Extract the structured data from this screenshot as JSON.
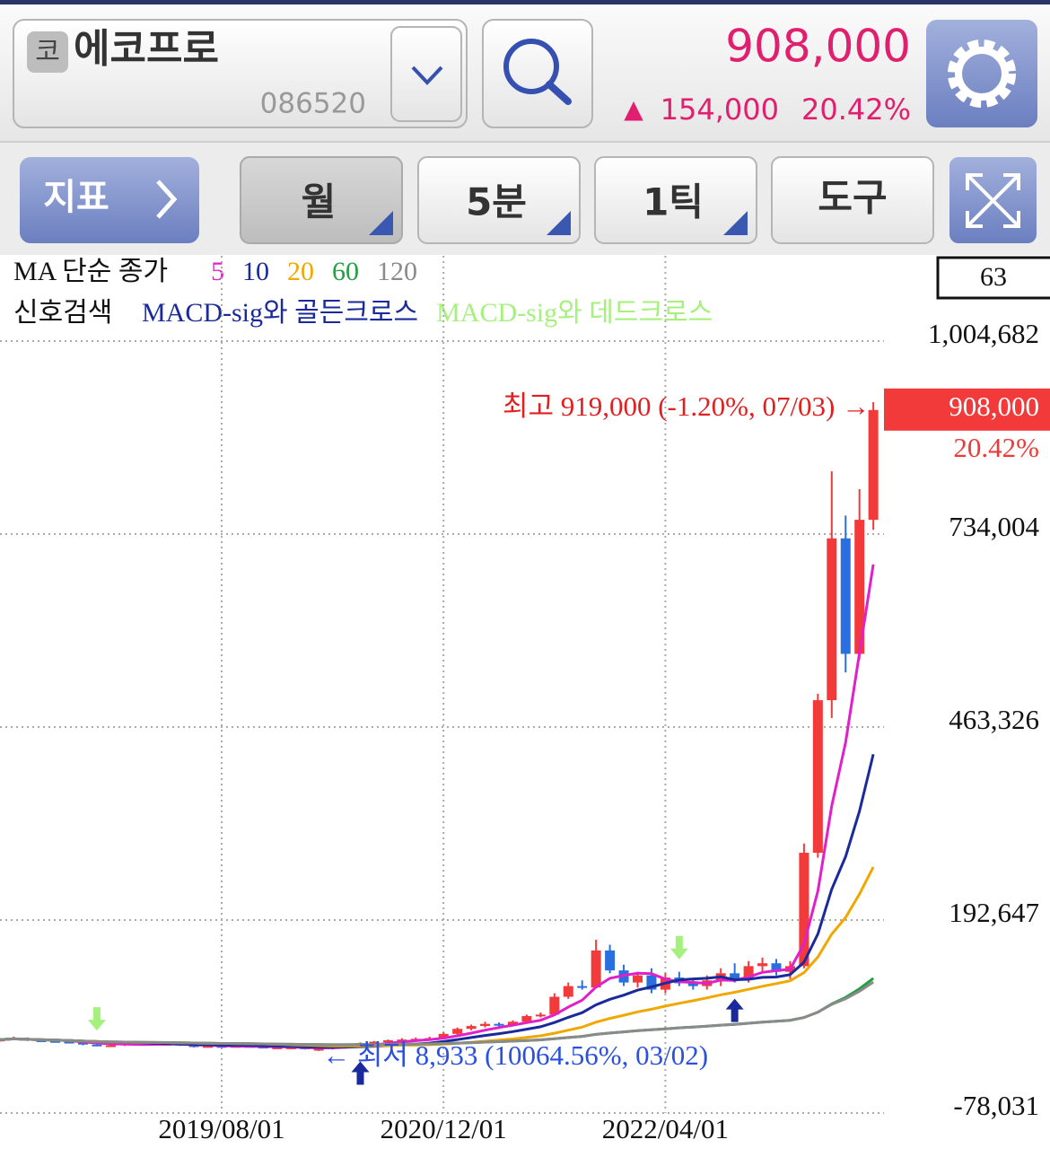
{
  "header": {
    "badge": "코",
    "name": "에코프로",
    "code": "086520",
    "price": "908,000",
    "change_arrow": "▲",
    "change": "154,000",
    "change_pct": "20.42%"
  },
  "toolbar": {
    "indicator": "지표",
    "periods": [
      "월",
      "5분",
      "1틱"
    ],
    "tools": "도구"
  },
  "chart_data": {
    "type": "candlestick",
    "ma_label": "MA 단순 종가",
    "ma": [
      {
        "period": 5,
        "color": "#e020c8"
      },
      {
        "period": 10,
        "color": "#1a2a9a"
      },
      {
        "period": 20,
        "color": "#f0a800"
      },
      {
        "period": 60,
        "color": "#22a040"
      },
      {
        "period": 120,
        "color": "#8a8a8a"
      }
    ],
    "signal_label": "신호검색",
    "signals": [
      {
        "name": "MACD-sig와 골든크로스",
        "color": "#1a2a9a",
        "dates": [
          "2020/06/01",
          "2022/09/01"
        ]
      },
      {
        "name": "MACD-sig와 데드크로스",
        "color": "#a6f07e",
        "dates": [
          "2018/11/01",
          "2022/05/01"
        ]
      }
    ],
    "box_value": 63,
    "high_annotation": "최고 919,000 (-1.20%, 07/03) →",
    "low_annotation": "← 최저 8,933 (10064.56%, 03/02)",
    "last_label": "908,000",
    "last_change": "20.42%",
    "up_color": "#f23a3a",
    "down_color": "#2a6fe0",
    "x": [
      "2018/04/01",
      "2018/05/01",
      "2018/06/01",
      "2018/07/01",
      "2018/08/01",
      "2018/09/01",
      "2018/10/01",
      "2018/11/01",
      "2018/12/01",
      "2019/01/01",
      "2019/02/01",
      "2019/03/01",
      "2019/04/01",
      "2019/05/01",
      "2019/06/01",
      "2019/07/01",
      "2019/08/01",
      "2019/09/01",
      "2019/10/01",
      "2019/11/01",
      "2019/12/01",
      "2020/01/01",
      "2020/02/01",
      "2020/03/01",
      "2020/04/01",
      "2020/05/01",
      "2020/06/01",
      "2020/07/01",
      "2020/08/01",
      "2020/09/01",
      "2020/10/01",
      "2020/11/01",
      "2020/12/01",
      "2021/01/01",
      "2021/02/01",
      "2021/03/01",
      "2021/04/01",
      "2021/05/01",
      "2021/06/01",
      "2021/07/01",
      "2021/08/01",
      "2021/09/01",
      "2021/10/01",
      "2021/11/01",
      "2021/12/01",
      "2022/01/01",
      "2022/02/01",
      "2022/03/01",
      "2022/04/01",
      "2022/05/01",
      "2022/06/01",
      "2022/07/01",
      "2022/08/01",
      "2022/09/01",
      "2022/10/01",
      "2022/11/01",
      "2022/12/01",
      "2023/01/01",
      "2023/02/01",
      "2023/03/01",
      "2023/04/01",
      "2023/05/01",
      "2023/06/01",
      "2023/07/01"
    ],
    "open": [
      24000,
      25000,
      27000,
      24000,
      23000,
      22000,
      21000,
      18000,
      17000,
      17000,
      20000,
      19000,
      18000,
      19000,
      17000,
      15000,
      16000,
      15000,
      16000,
      15000,
      14000,
      14000,
      14000,
      12000,
      12000,
      15000,
      18000,
      20000,
      22000,
      24000,
      25000,
      26000,
      27000,
      33000,
      40000,
      44000,
      47000,
      45000,
      50000,
      58000,
      60000,
      85000,
      100000,
      98000,
      150000,
      122000,
      105000,
      115000,
      95000,
      112000,
      104000,
      100000,
      108000,
      118000,
      110000,
      128000,
      132000,
      120000,
      128000,
      287000,
      501000,
      728000,
      566000,
      754000
    ],
    "high": [
      27000,
      29000,
      28000,
      26000,
      25000,
      24000,
      22000,
      20000,
      19000,
      21000,
      22000,
      21000,
      21000,
      20000,
      18000,
      17000,
      17000,
      17000,
      17000,
      16000,
      15000,
      16000,
      15000,
      13000,
      16000,
      19000,
      21000,
      23000,
      25000,
      27000,
      28000,
      29000,
      35000,
      42000,
      46000,
      50000,
      49000,
      52000,
      60000,
      63000,
      90000,
      105000,
      108000,
      165000,
      158000,
      130000,
      120000,
      125000,
      118000,
      120000,
      110000,
      115000,
      125000,
      132000,
      135000,
      140000,
      138000,
      135000,
      300000,
      510000,
      822000,
      760000,
      797000,
      919000
    ],
    "low": [
      22000,
      24000,
      23000,
      22000,
      21000,
      20000,
      17000,
      16000,
      16000,
      16000,
      18000,
      17000,
      17000,
      16000,
      14000,
      14000,
      14000,
      14000,
      14000,
      13000,
      13000,
      13000,
      11000,
      8933,
      11000,
      14000,
      17000,
      19000,
      21000,
      22000,
      23000,
      24000,
      26000,
      32000,
      38000,
      42000,
      42000,
      44000,
      48000,
      56000,
      58000,
      82000,
      95000,
      97000,
      118000,
      100000,
      98000,
      90000,
      90000,
      100000,
      95000,
      95000,
      100000,
      105000,
      105000,
      120000,
      115000,
      110000,
      125000,
      280000,
      476000,
      540000,
      558000,
      740000
    ],
    "close": [
      25000,
      27000,
      24000,
      23000,
      22000,
      21000,
      18000,
      17000,
      17000,
      20000,
      19000,
      18000,
      19000,
      17000,
      15000,
      16000,
      15000,
      16000,
      15000,
      14000,
      14000,
      14000,
      12000,
      12000,
      15000,
      18000,
      20000,
      22000,
      24000,
      25000,
      26000,
      27000,
      33000,
      40000,
      44000,
      47000,
      45000,
      50000,
      58000,
      60000,
      85000,
      100000,
      98000,
      150000,
      122000,
      105000,
      115000,
      95000,
      112000,
      104000,
      100000,
      108000,
      118000,
      110000,
      128000,
      132000,
      120000,
      128000,
      287000,
      501000,
      728000,
      566000,
      754000,
      908000
    ],
    "ylim": [
      -78031,
      1004682
    ],
    "yticks": [
      {
        "value": -78031,
        "label": "-78,031"
      },
      {
        "value": 192647,
        "label": "192,647"
      },
      {
        "value": 463326,
        "label": "463,326"
      },
      {
        "value": 734004,
        "label": "734,004"
      },
      {
        "value": 1004682,
        "label": "1,004,682"
      }
    ],
    "xticks": [
      "2019/08/01",
      "2020/12/01",
      "2022/04/01"
    ],
    "grid": true
  }
}
